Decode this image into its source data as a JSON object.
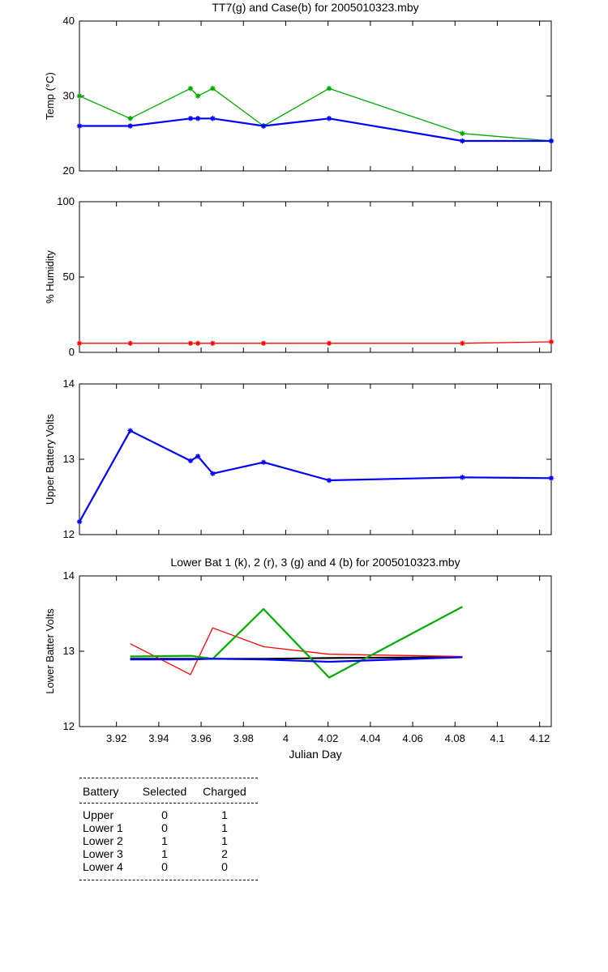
{
  "chart_data": [
    {
      "type": "line",
      "title": "TT7(g) and Case(b) for 2005010323.mby",
      "ylabel": "Temp (°C)",
      "xlim": [
        3.9025,
        4.1255
      ],
      "ylim": [
        20,
        40
      ],
      "yticks": [
        20,
        30,
        40
      ],
      "grid": false,
      "series": [
        {
          "color": "#00aa00",
          "marker": "star",
          "x": [
            3.9025,
            3.9265,
            3.955,
            3.9585,
            3.9655,
            3.9895,
            4.0205,
            4.0835,
            4.1255
          ],
          "y": [
            30,
            27,
            31,
            30,
            31,
            26,
            31,
            25,
            24
          ]
        },
        {
          "color": "#0000ff",
          "marker": "star",
          "x": [
            3.9025,
            3.9265,
            3.955,
            3.9585,
            3.9655,
            3.9895,
            4.0205,
            4.0835,
            4.1255
          ],
          "y": [
            26,
            26,
            27,
            27,
            27,
            26,
            27,
            24,
            24
          ]
        }
      ]
    },
    {
      "type": "line",
      "title": "",
      "ylabel": "% Humidity",
      "xlim": [
        3.9025,
        4.1255
      ],
      "ylim": [
        0,
        100
      ],
      "yticks": [
        0,
        50,
        100
      ],
      "grid": false,
      "series": [
        {
          "color": "#ff0000",
          "marker": "star",
          "x": [
            3.9025,
            3.9265,
            3.955,
            3.9585,
            3.9655,
            3.9895,
            4.0205,
            4.0835,
            4.1255
          ],
          "y": [
            6,
            6,
            6,
            6,
            6,
            6,
            6,
            6,
            7
          ]
        }
      ]
    },
    {
      "type": "line",
      "title": "",
      "ylabel": "Upper Battery Volts",
      "xlim": [
        3.9025,
        4.1255
      ],
      "ylim": [
        12,
        14
      ],
      "yticks": [
        12,
        13,
        14
      ],
      "grid": false,
      "series": [
        {
          "color": "#0000ff",
          "marker": "star",
          "x": [
            3.9025,
            3.9265,
            3.955,
            3.9585,
            3.9655,
            3.9895,
            4.0205,
            4.0835,
            4.1255
          ],
          "y": [
            12.17,
            13.38,
            12.98,
            13.04,
            12.81,
            12.96,
            12.72,
            12.76,
            12.75
          ]
        }
      ]
    },
    {
      "type": "line",
      "title": "Lower Bat 1 (k), 2 (r), 3 (g) and 4 (b) for 2005010323.mby",
      "xlabel": "Julian Day",
      "ylabel": "Lower Batter Volts",
      "xlim": [
        3.9025,
        4.1255
      ],
      "ylim": [
        12,
        14
      ],
      "yticks": [
        12,
        13,
        14
      ],
      "xticks": [
        3.92,
        3.94,
        3.96,
        3.98,
        4,
        4.02,
        4.04,
        4.06,
        4.08,
        4.1,
        4.12
      ],
      "xticklabels": [
        "3.92",
        "3.94",
        "3.96",
        "3.98",
        "4",
        "4.02",
        "4.04",
        "4.06",
        "4.08",
        "4.1",
        "4.12"
      ],
      "grid": false,
      "series": [
        {
          "color": "#000000",
          "marker": "none",
          "x": [
            3.9265,
            3.955,
            3.9655,
            3.9895,
            4.0205,
            4.0835
          ],
          "y": [
            12.9,
            12.9,
            12.9,
            12.9,
            12.91,
            12.92
          ]
        },
        {
          "color": "#ff0000",
          "marker": "none",
          "x": [
            3.9265,
            3.955,
            3.9655,
            3.9895,
            4.0205,
            4.0835
          ],
          "y": [
            13.1,
            12.69,
            13.31,
            13.06,
            12.96,
            12.93
          ]
        },
        {
          "color": "#00aa00",
          "marker": "none",
          "x": [
            3.9265,
            3.955,
            3.9655,
            3.9895,
            4.0205,
            4.0835
          ],
          "y": [
            12.93,
            12.94,
            12.9,
            13.56,
            12.65,
            13.59
          ]
        },
        {
          "color": "#0000ff",
          "marker": "none",
          "x": [
            3.9265,
            3.955,
            3.9655,
            3.9895,
            4.0205,
            4.0835
          ],
          "y": [
            12.89,
            12.89,
            12.9,
            12.89,
            12.86,
            12.92
          ]
        }
      ]
    }
  ],
  "battery_table": {
    "headers": [
      "Battery",
      "Selected",
      "Charged"
    ],
    "rows": [
      [
        "Upper",
        "0",
        "1"
      ],
      [
        "Lower 1",
        "0",
        "1"
      ],
      [
        "Lower 2",
        "1",
        "1"
      ],
      [
        "Lower 3",
        "1",
        "2"
      ],
      [
        "Lower 4",
        "0",
        "0"
      ]
    ]
  }
}
